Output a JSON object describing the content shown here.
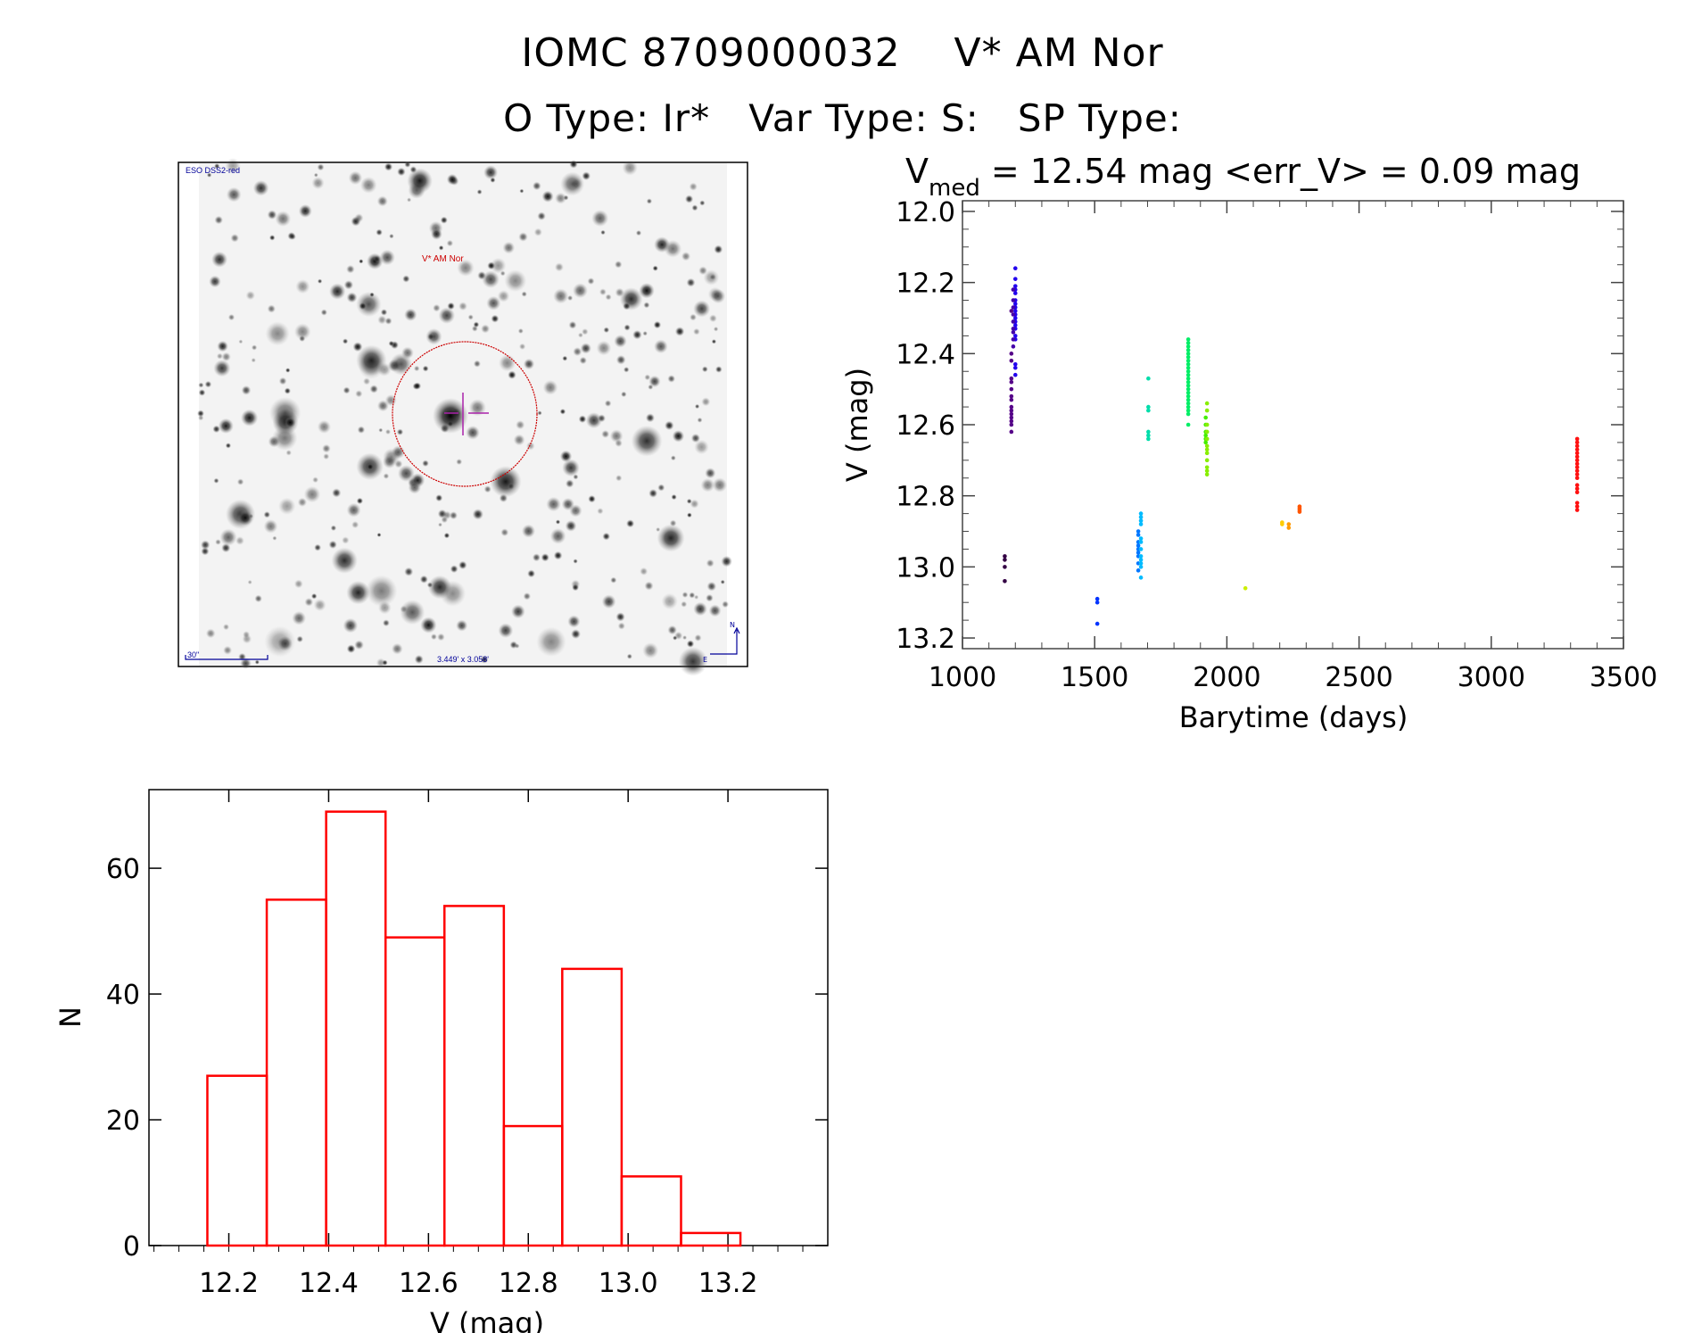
{
  "header": {
    "title": "IOMC 8709000032    V* AM Nor",
    "subtitle": "O Type: Ir*   Var Type: S:   SP Type:"
  },
  "image_panel": {
    "survey_label": "ESO DSS2-red",
    "target_label": "V* AM Nor",
    "scale_label": "30\"",
    "fov_label": "3.449' x 3.058'",
    "north_label": "N",
    "east_label": "E",
    "circle_color": "#cc0000",
    "label_color": "#000099"
  },
  "chart_data": [
    {
      "type": "scatter",
      "title_main": "V",
      "title_sub": "med",
      "title_rest": " = 12.54 mag <err_V> = 0.09 mag",
      "xlabel": "Barytime (days)",
      "ylabel": "V (mag)",
      "xlim": [
        1000,
        3500
      ],
      "ylim": [
        11.97,
        13.23
      ],
      "y_inverted": true,
      "xticks": [
        "1000",
        "1500",
        "2000",
        "2500",
        "3000",
        "3500"
      ],
      "yticks": [
        "12.0",
        "12.2",
        "12.4",
        "12.6",
        "12.8",
        "13.0",
        "13.2"
      ],
      "color_coding": "rainbow by time",
      "groups": [
        {
          "color": "#2200ee",
          "x": 1200,
          "y": [
            12.16,
            12.19,
            12.21,
            12.22,
            12.23,
            12.25,
            12.26,
            12.27,
            12.28,
            12.29,
            12.3,
            12.31,
            12.32,
            12.33,
            12.35,
            12.36,
            12.43,
            12.44,
            12.46
          ]
        },
        {
          "color": "#4400aa",
          "x": 1192,
          "y": [
            12.22,
            12.25,
            12.27,
            12.29,
            12.31,
            12.33,
            12.34,
            12.36,
            12.38
          ]
        },
        {
          "color": "#550088",
          "x": 1185,
          "y": [
            12.28,
            12.4,
            12.42,
            12.47,
            12.48,
            12.5,
            12.52,
            12.53,
            12.55,
            12.56,
            12.57,
            12.58,
            12.59,
            12.6,
            12.62
          ]
        },
        {
          "color": "#330044",
          "x": 1160,
          "y": [
            12.97,
            12.98,
            13.0,
            13.04
          ]
        },
        {
          "color": "#0033ff",
          "x": 1510,
          "y": [
            13.09,
            13.1,
            13.16
          ]
        },
        {
          "color": "#0077ff",
          "x": 1665,
          "y": [
            12.9,
            12.91,
            12.93,
            12.94,
            12.95,
            12.96,
            12.97,
            12.99,
            13.01
          ]
        },
        {
          "color": "#00bbff",
          "x": 1675,
          "y": [
            12.85,
            12.86,
            12.87,
            12.88,
            12.92,
            12.93,
            12.95,
            12.97,
            12.98,
            12.99,
            13.0,
            13.03
          ]
        },
        {
          "color": "#00ddaa",
          "x": 1703,
          "y": [
            12.47,
            12.55,
            12.56,
            12.62,
            12.63,
            12.64
          ]
        },
        {
          "color": "#00ee66",
          "x": 1854,
          "y": [
            12.36,
            12.37,
            12.38,
            12.39,
            12.4,
            12.41,
            12.42,
            12.43,
            12.44,
            12.45,
            12.46,
            12.47,
            12.48,
            12.49,
            12.5,
            12.51,
            12.52,
            12.53,
            12.54,
            12.55,
            12.56,
            12.57,
            12.6
          ]
        },
        {
          "color": "#44ee00",
          "x": 1920,
          "y": [
            12.58,
            12.6,
            12.62,
            12.63,
            12.64,
            12.65
          ]
        },
        {
          "color": "#88ee00",
          "x": 1925,
          "y": [
            12.54,
            12.56,
            12.6,
            12.62,
            12.64,
            12.66,
            12.67,
            12.68,
            12.7,
            12.72,
            12.73,
            12.74
          ]
        },
        {
          "color": "#ccee00",
          "x": 2070,
          "y": [
            13.06
          ]
        },
        {
          "color": "#ffcc00",
          "x": 2209,
          "y": [
            12.875,
            12.88
          ]
        },
        {
          "color": "#ff9900",
          "x": 2234,
          "y": [
            12.88,
            12.89
          ]
        },
        {
          "color": "#ff5500",
          "x": 2275,
          "y": [
            12.83,
            12.835,
            12.84,
            12.845
          ]
        },
        {
          "color": "#ff1111",
          "x": 3325,
          "y": [
            12.64,
            12.65,
            12.66,
            12.67,
            12.68,
            12.69,
            12.7,
            12.71,
            12.72,
            12.73,
            12.74,
            12.75,
            12.77,
            12.78,
            12.79,
            12.82,
            12.83,
            12.84
          ]
        }
      ]
    },
    {
      "type": "bar",
      "subtype": "histogram",
      "xlabel": "V (mag)",
      "ylabel": "N",
      "xlim": [
        12.04,
        13.4
      ],
      "ylim": [
        0,
        72.5
      ],
      "xticks": [
        "12.2",
        "12.4",
        "12.6",
        "12.8",
        "13.0",
        "13.2"
      ],
      "yticks": [
        "0",
        "20",
        "40",
        "60"
      ],
      "bar_color": "#ff0000",
      "bin_edges": [
        12.157,
        12.276,
        12.395,
        12.514,
        12.632,
        12.751,
        12.868,
        12.987,
        13.106,
        13.225
      ],
      "values": [
        27,
        55,
        69,
        49,
        54,
        19,
        44,
        11,
        2
      ]
    }
  ]
}
